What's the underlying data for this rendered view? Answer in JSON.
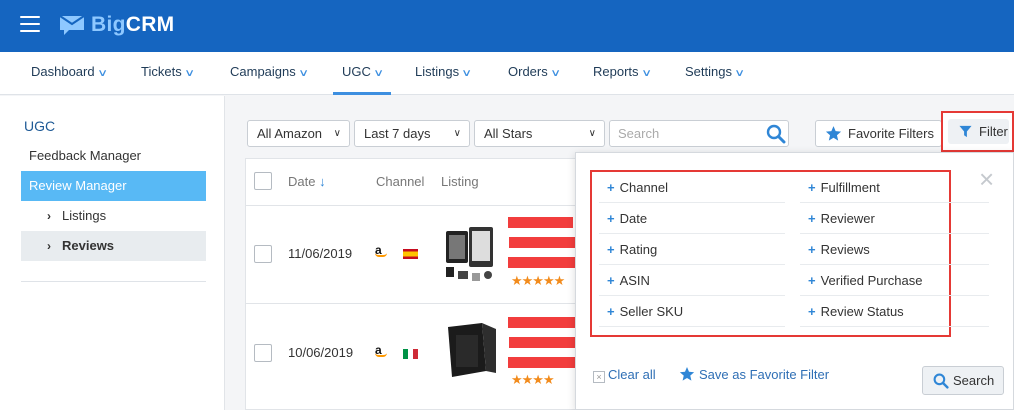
{
  "app": {
    "logo_prefix": "Big",
    "logo_suffix": "CRM"
  },
  "nav": [
    {
      "label": "Dashboard"
    },
    {
      "label": "Tickets"
    },
    {
      "label": "Campaigns"
    },
    {
      "label": "UGC",
      "active": true
    },
    {
      "label": "Listings"
    },
    {
      "label": "Orders"
    },
    {
      "label": "Reports"
    },
    {
      "label": "Settings"
    }
  ],
  "sidebar": {
    "title": "UGC",
    "feedback_manager": "Feedback Manager",
    "review_manager": "Review Manager",
    "sub_items": [
      {
        "label": "Listings"
      },
      {
        "label": "Reviews",
        "selected": true
      }
    ]
  },
  "filters": {
    "marketplace": "All Amazon",
    "period": "Last 7 days",
    "stars": "All Stars",
    "search_placeholder": "Search",
    "favorite_filters": "Favorite Filters",
    "filter": "Filter"
  },
  "table": {
    "columns": {
      "date": "Date",
      "channel": "Channel",
      "listing": "Listing"
    },
    "rows": [
      {
        "date": "11/06/2019",
        "channel": "amazon",
        "flag": "spain-flag",
        "rating": 4.5
      },
      {
        "date": "10/06/2019",
        "channel": "amazon",
        "flag": "italy-flag",
        "rating": 4
      }
    ]
  },
  "filter_panel": {
    "left_options": [
      "Channel",
      "Date",
      "Rating",
      "ASIN",
      "Seller SKU"
    ],
    "right_options": [
      "Fulfillment",
      "Reviewer",
      "Reviews",
      "Verified Purchase",
      "Review Status"
    ],
    "clear_all": "Clear all",
    "save_favorite": "Save as Favorite Filter",
    "search": "Search"
  },
  "colors": {
    "brand": "#1565c0",
    "accent": "#3d8fe0",
    "active_item": "#58b9f5",
    "highlight": "#e53935",
    "star": "#f28b1c"
  }
}
